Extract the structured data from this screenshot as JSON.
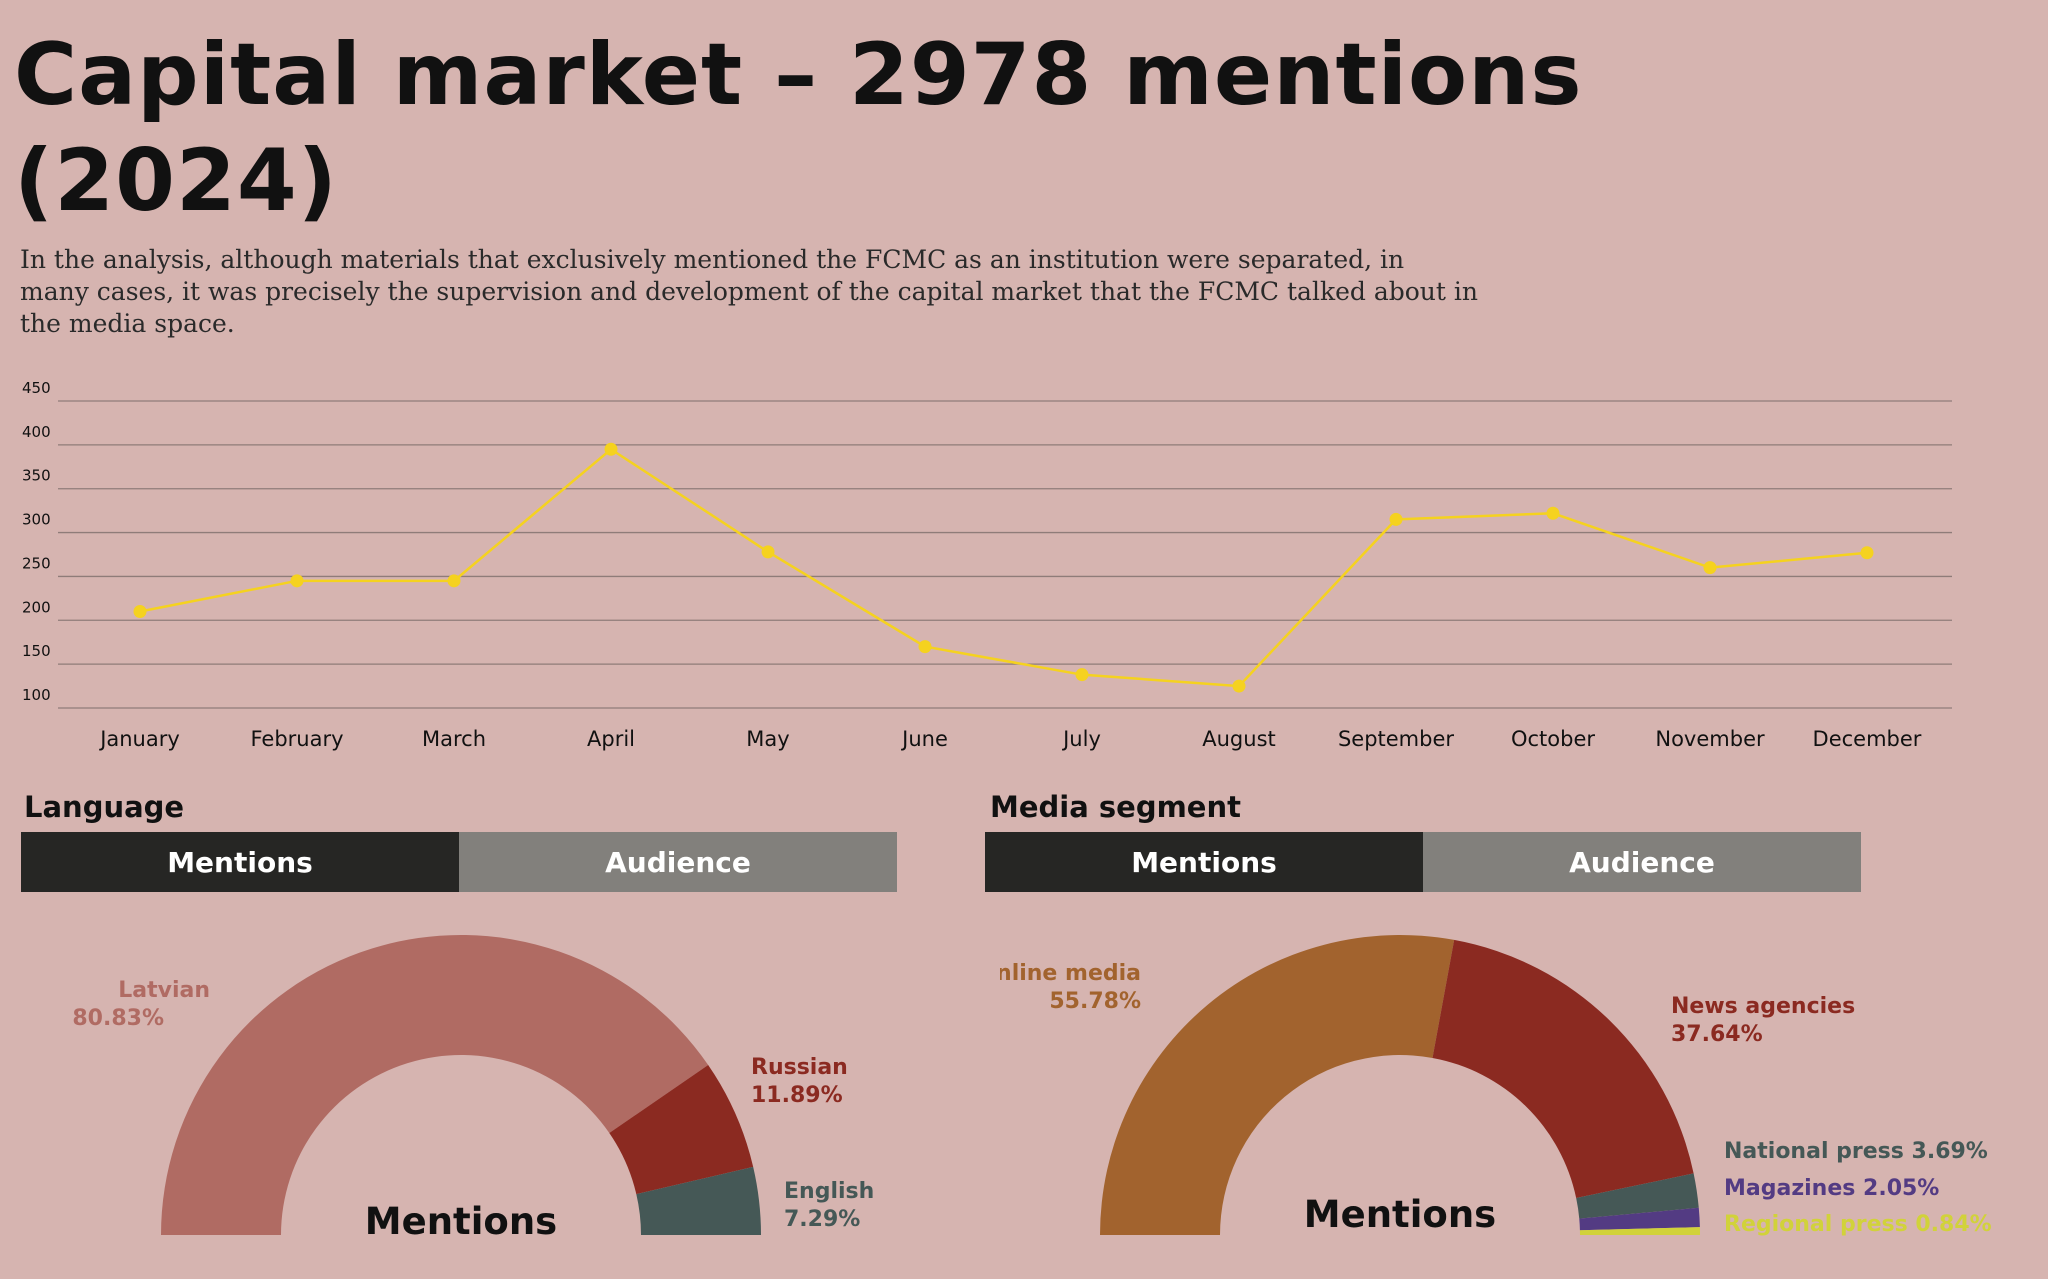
{
  "title": "Capital market – 2978 mentions (2024)",
  "intro": "In the analysis, although materials that exclusively mentioned the FCMC as an institution were separated, in many cases, it was precisely the supervision and development of the capital market that the FCMC talked about in the media space.",
  "colors": {
    "background": "#d6b4b0",
    "line": "#f5d21f",
    "latvian": "#b06b63",
    "russian": "#8b2a21",
    "english": "#455856",
    "online_media": "#a2632e",
    "news_agencies": "#8b2a21",
    "national_press": "#455856",
    "magazines": "#533b83",
    "regional_press": "#d1d23a"
  },
  "chart_data": [
    {
      "type": "line",
      "categories": [
        "January",
        "February",
        "March",
        "April",
        "May",
        "June",
        "July",
        "August",
        "September",
        "October",
        "November",
        "December"
      ],
      "series": [
        {
          "values": [
            210,
            245,
            245,
            395,
            278,
            170,
            138,
            125,
            315,
            322,
            260,
            277
          ]
        }
      ],
      "yticks": [
        450,
        400,
        350,
        300,
        250,
        200,
        150,
        100
      ],
      "ylim": [
        100,
        450
      ],
      "grid": true
    },
    {
      "type": "pie",
      "variant": "half-donut",
      "title": "Language",
      "tabs": [
        "Mentions",
        "Audience"
      ],
      "active_tab": "Mentions",
      "center_label": "Mentions",
      "slices": [
        {
          "name": "Latvian",
          "value": 80.83,
          "label": "80.83%",
          "color": "#b06b63"
        },
        {
          "name": "Russian",
          "value": 11.89,
          "label": "11.89%",
          "color": "#8b2a21"
        },
        {
          "name": "English",
          "value": 7.29,
          "label": "7.29%",
          "color": "#455856"
        }
      ]
    },
    {
      "type": "pie",
      "variant": "half-donut",
      "title": "Media segment",
      "tabs": [
        "Mentions",
        "Audience"
      ],
      "active_tab": "Mentions",
      "center_label": "Mentions",
      "slices": [
        {
          "name": "Online media",
          "value": 55.78,
          "label": "55.78%",
          "color": "#a2632e"
        },
        {
          "name": "News agencies",
          "value": 37.64,
          "label": "37.64%",
          "color": "#8b2a21"
        },
        {
          "name": "National press",
          "value": 3.69,
          "label": "3.69%",
          "color": "#455856"
        },
        {
          "name": "Magazines",
          "value": 2.05,
          "label": "2.05%",
          "color": "#533b83"
        },
        {
          "name": "Regional press",
          "value": 0.84,
          "label": "0.84%",
          "color": "#d1d23a"
        }
      ]
    }
  ]
}
